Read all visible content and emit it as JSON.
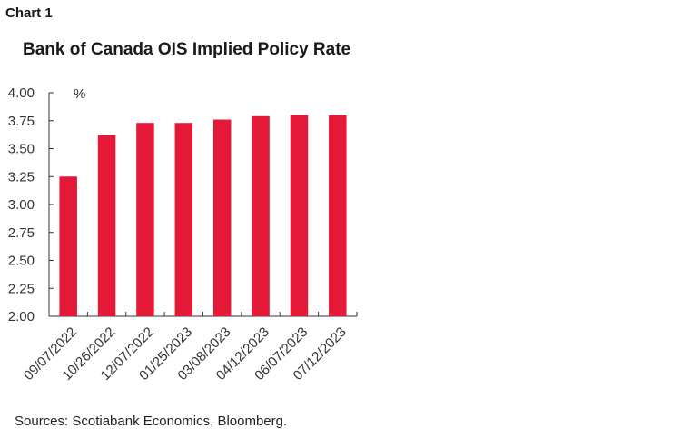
{
  "header": {
    "chart_label": "Chart 1",
    "title": "Bank of Canada OIS Implied Policy Rate"
  },
  "footer": {
    "source": "Sources: Scotiabank Economics, Bloomberg."
  },
  "colors": {
    "bar": "#e31937",
    "axis": "#333333"
  },
  "chart_data": {
    "type": "bar",
    "title": "Bank of Canada OIS Implied Policy Rate",
    "unit_label": "%",
    "categories": [
      "09/07/2022",
      "10/26/2022",
      "12/07/2022",
      "01/25/2023",
      "03/08/2023",
      "04/12/2023",
      "06/07/2023",
      "07/12/2023"
    ],
    "values": [
      3.25,
      3.62,
      3.73,
      3.73,
      3.76,
      3.79,
      3.8,
      3.8
    ],
    "ylim": [
      2.0,
      4.0
    ],
    "yticks": [
      "2.00",
      "2.25",
      "2.50",
      "2.75",
      "3.00",
      "3.25",
      "3.50",
      "3.75",
      "4.00"
    ],
    "grid": false,
    "legend": "none"
  }
}
